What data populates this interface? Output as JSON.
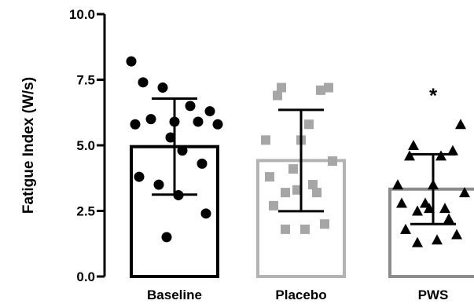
{
  "chart_data": {
    "type": "bar",
    "title": "",
    "xlabel": "",
    "ylabel": "Fatigue Index (W/s)",
    "ylim": [
      0,
      10
    ],
    "yticks": [
      "0.0",
      "2.5",
      "5.0",
      "7.5",
      "10.0"
    ],
    "ytick_values": [
      0,
      2.5,
      5,
      7.5,
      10
    ],
    "grid": false,
    "categories": [
      "Baseline",
      "Placebo",
      "PWS"
    ],
    "means": [
      4.95,
      4.42,
      3.33
    ],
    "sd": [
      1.83,
      1.93,
      1.33
    ],
    "bar_colors": [
      "#000000",
      "#b3b3b3",
      "#8c8c8c"
    ],
    "marker_colors": [
      "#000000",
      "#a6a6a6",
      "#000000"
    ],
    "marker_shapes": [
      "circle",
      "square",
      "triangle"
    ],
    "points": [
      [
        8.2,
        7.4,
        7.2,
        6.5,
        6.3,
        6.0,
        5.9,
        5.9,
        5.8,
        5.8,
        5.3,
        4.8,
        4.3,
        3.8,
        3.5,
        3.1,
        2.4,
        1.5
      ],
      [
        7.2,
        7.2,
        7.1,
        6.9,
        5.8,
        5.2,
        5.2,
        4.4,
        4.1,
        3.8,
        3.5,
        3.3,
        3.2,
        3.2,
        2.7,
        2.0,
        1.8,
        1.8
      ],
      [
        5.8,
        5.0,
        4.8,
        4.6,
        4.6,
        3.5,
        3.5,
        3.2,
        2.8,
        2.8,
        2.6,
        2.6,
        2.5,
        2.2,
        1.8,
        1.6,
        1.4,
        1.3
      ]
    ],
    "annotations": [
      {
        "category": "PWS",
        "text": "*"
      }
    ]
  }
}
